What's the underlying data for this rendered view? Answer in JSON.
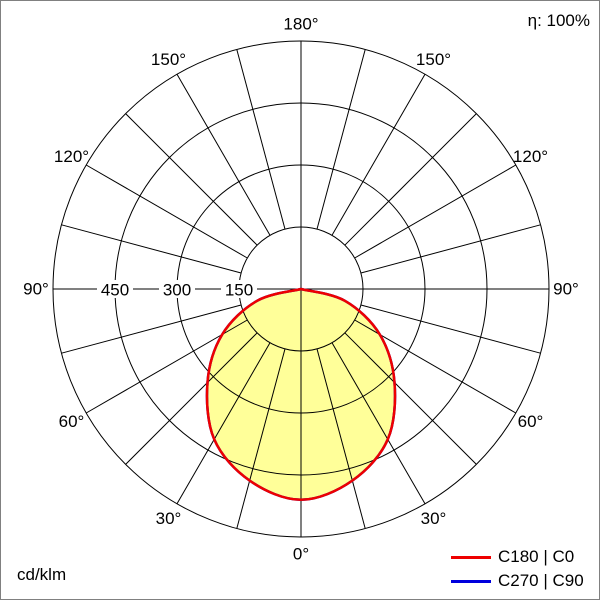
{
  "header": {
    "efficiency_label": "η: 100%"
  },
  "footer": {
    "unit_label": "cd/klm"
  },
  "legend": {
    "items": [
      {
        "label": "C180 | C0",
        "color": "#ee0000"
      },
      {
        "label": "C270 | C90",
        "color": "#0000dd"
      }
    ]
  },
  "chart_data": {
    "type": "polar-intensity-distribution",
    "unit": "cd/klm",
    "efficiency_percent": 100,
    "angle_tick_labels_deg": [
      0,
      30,
      60,
      90,
      120,
      150,
      180
    ],
    "angle_spoke_step_deg": 15,
    "radial_gridlines": [
      150,
      300,
      450,
      600
    ],
    "radial_tick_labels": [
      150,
      300,
      450
    ],
    "radial_axis_max": 600,
    "grid": true,
    "legend_position": "bottom-right",
    "fill_color": "#ffff99",
    "series": [
      {
        "name": "C180 | C0",
        "color": "#ee0000",
        "gamma_deg": [
          -90,
          -75,
          -60,
          -45,
          -30,
          -15,
          0,
          15,
          30,
          45,
          60,
          75,
          90
        ],
        "intensity_cd_per_klm": [
          0,
          110,
          220,
          320,
          420,
          480,
          510,
          480,
          420,
          320,
          220,
          110,
          0
        ]
      },
      {
        "name": "C270 | C90",
        "color": "#0000dd",
        "gamma_deg": [
          -90,
          -75,
          -60,
          -45,
          -30,
          -15,
          0,
          15,
          30,
          45,
          60,
          75,
          90
        ],
        "intensity_cd_per_klm": [
          0,
          110,
          220,
          320,
          420,
          480,
          510,
          480,
          420,
          320,
          220,
          110,
          0
        ]
      }
    ]
  }
}
